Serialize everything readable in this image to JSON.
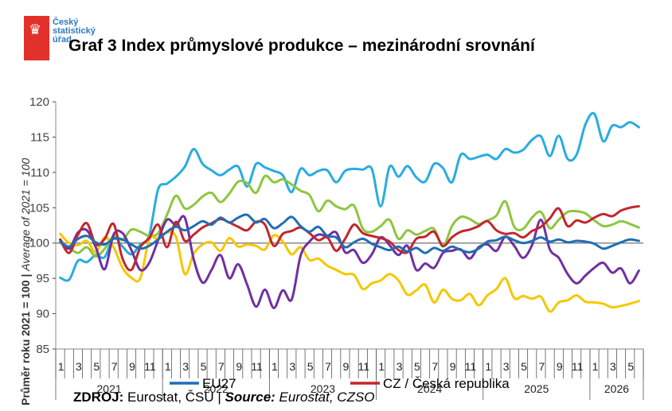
{
  "logo": {
    "line1": "Český",
    "line2": "statistický",
    "line3": "úřad",
    "colors": {
      "flag": "#e2312a",
      "text": "#2b78c5"
    }
  },
  "title": "Graf 3 Index průmyslové produkce – mezinárodní srovnání",
  "source": {
    "label_cz": "ZDROJ:",
    "text_cz": " Eurostat, ČSÚ | ",
    "label_en": "Source:",
    "text_en": " Eurostat, CZSO"
  },
  "chart_data": {
    "type": "line",
    "ylabel_cz": "Průměr roku 2021 = 100",
    "ylabel_en": "Average of 2021 = 100",
    "ylim": [
      85,
      120
    ],
    "yticks": [
      85,
      90,
      95,
      100,
      105,
      110,
      115,
      120
    ],
    "month_ticks": [
      "1",
      "3",
      "5",
      "7",
      "9",
      "11",
      "1",
      "3",
      "5",
      "7",
      "9",
      "11",
      "1",
      "3",
      "5",
      "7",
      "9",
      "11",
      "1",
      "3",
      "5",
      "7",
      "9",
      "11",
      "1",
      "3",
      "5",
      "7",
      "9",
      "11",
      "1",
      "3",
      "5"
    ],
    "years": [
      "2021",
      "2022",
      "2023",
      "2024",
      "2025",
      "2026"
    ],
    "n_months": 66,
    "reference_line": 100,
    "legend": [
      "EU27",
      "CZ / Česká republika"
    ],
    "series": [
      {
        "name": "EU27",
        "color": "#1f6eb3",
        "values": [
          100.2,
          99.5,
          100.6,
          101.0,
          100.1,
          99.8,
          100.6,
          100.5,
          99.8,
          99.2,
          99.6,
          100.5,
          101.6,
          102.3,
          101.8,
          102.4,
          103.1,
          102.6,
          103.6,
          102.9,
          103.6,
          104.0,
          102.9,
          103.4,
          102.1,
          102.8,
          103.7,
          102.4,
          101.6,
          102.3,
          101.0,
          100.8,
          99.4,
          100.1,
          100.6,
          99.9,
          99.4,
          99.0,
          99.5,
          98.8,
          99.3,
          98.6,
          99.3,
          98.9,
          99.5,
          99.0,
          98.7,
          99.2,
          100.2,
          100.4,
          100.9,
          100.4,
          100.0,
          100.3,
          100.8,
          100.2,
          100.5,
          100.1,
          100.3,
          100.2,
          99.9,
          99.2,
          99.6,
          100.1,
          100.5,
          100.3
        ]
      },
      {
        "name": "",
        "color": "#29abe2",
        "values": [
          95.1,
          94.8,
          97.5,
          97.3,
          98.3,
          98.0,
          100.8,
          99.5,
          98.4,
          99.8,
          101.1,
          107.6,
          108.4,
          109.4,
          110.8,
          113.3,
          111.2,
          110.3,
          109.6,
          110.4,
          110.8,
          108.0,
          111.2,
          110.7,
          110.2,
          109.6,
          107.2,
          110.5,
          109.6,
          110.2,
          110.3,
          108.6,
          110.2,
          110.5,
          110.4,
          110.5,
          105.2,
          110.8,
          109.4,
          110.9,
          109.3,
          108.7,
          111.2,
          110.6,
          108.6,
          112.5,
          111.9,
          112.2,
          112.5,
          111.9,
          113.3,
          112.8,
          113.2,
          114.6,
          115.1,
          112.3,
          115.2,
          111.9,
          112.5,
          116.8,
          118.3,
          114.4,
          116.6,
          116.4,
          117.1,
          116.4
        ]
      },
      {
        "name": "",
        "color": "#8dc63f",
        "values": [
          100.0,
          99.3,
          98.6,
          99.4,
          98.1,
          99.2,
          101.0,
          100.5,
          101.9,
          101.6,
          101.0,
          101.4,
          104.0,
          106.7,
          104.9,
          105.4,
          106.6,
          107.1,
          105.8,
          107.0,
          108.7,
          108.5,
          107.1,
          109.5,
          108.6,
          109.0,
          108.3,
          107.4,
          106.8,
          104.5,
          106.0,
          105.2,
          104.8,
          105.3,
          102.0,
          101.6,
          102.4,
          103.3,
          100.6,
          101.8,
          101.2,
          101.7,
          102.0,
          99.5,
          102.4,
          103.7,
          103.4,
          102.7,
          103.2,
          103.9,
          105.9,
          102.3,
          102.0,
          103.6,
          104.4,
          102.1,
          103.3,
          104.4,
          104.5,
          104.2,
          103.2,
          102.4,
          102.6,
          103.1,
          102.7,
          102.2
        ]
      },
      {
        "name": "CZ / Česká republika",
        "color": "#c1272d",
        "values": [
          100.5,
          98.6,
          101.2,
          102.8,
          99.8,
          100.6,
          102.7,
          97.8,
          96.2,
          99.4,
          100.7,
          102.6,
          99.4,
          103.0,
          100.3,
          101.2,
          102.2,
          102.8,
          103.4,
          102.9,
          102.3,
          101.8,
          103.0,
          102.6,
          99.6,
          101.3,
          101.7,
          102.2,
          101.4,
          100.4,
          100.8,
          98.9,
          100.6,
          102.6,
          101.4,
          101.0,
          100.7,
          100.2,
          99.0,
          98.7,
          100.6,
          100.9,
          101.6,
          99.6,
          100.8,
          101.6,
          101.9,
          102.4,
          103.1,
          101.8,
          101.3,
          101.4,
          100.8,
          101.7,
          102.3,
          103.5,
          104.9,
          102.4,
          103.2,
          102.9,
          103.6,
          104.1,
          103.8,
          104.6,
          105.0,
          105.2
        ]
      },
      {
        "name": "",
        "color": "#f7c600",
        "values": [
          101.3,
          100.0,
          99.7,
          100.3,
          98.7,
          100.8,
          99.4,
          96.5,
          95.1,
          95.0,
          100.5,
          100.6,
          101.5,
          100.9,
          95.6,
          98.5,
          99.8,
          100.1,
          98.9,
          100.7,
          99.5,
          99.8,
          99.6,
          99.1,
          101.1,
          100.2,
          98.4,
          99.4,
          97.6,
          97.8,
          96.8,
          96.2,
          95.6,
          95.5,
          93.5,
          94.3,
          94.7,
          95.6,
          94.7,
          92.7,
          93.3,
          94.1,
          91.6,
          93.4,
          92.1,
          91.9,
          92.8,
          91.2,
          92.6,
          93.5,
          95.0,
          92.2,
          92.5,
          92.1,
          92.4,
          90.3,
          91.6,
          91.9,
          92.6,
          91.7,
          91.6,
          91.4,
          90.9,
          91.1,
          91.4,
          91.8
        ]
      },
      {
        "name": "",
        "color": "#7030a0",
        "values": [
          100.5,
          99.2,
          101.5,
          101.8,
          99.4,
          96.3,
          101.2,
          101.4,
          99.0,
          96.2,
          97.2,
          100.4,
          103.3,
          102.6,
          103.6,
          97.7,
          94.4,
          96.2,
          98.3,
          95.0,
          97.0,
          94.1,
          91.0,
          93.4,
          90.8,
          93.3,
          92.0,
          98.2,
          100.2,
          101.2,
          101.0,
          101.5,
          98.7,
          99.0,
          97.2,
          98.4,
          100.8,
          99.7,
          98.3,
          99.6,
          96.2,
          97.1,
          96.5,
          98.6,
          98.9,
          99.1,
          97.8,
          99.4,
          99.8,
          98.9,
          100.9,
          99.6,
          97.9,
          99.7,
          103.3,
          99.1,
          97.9,
          95.6,
          94.3,
          95.4,
          96.5,
          97.2,
          95.8,
          96.4,
          94.3,
          96.1
        ]
      }
    ]
  }
}
